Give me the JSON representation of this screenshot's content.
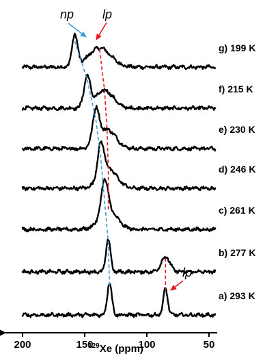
{
  "chart_data": {
    "type": "line",
    "xlabel_sup": "129",
    "xlabel_main": "Xe (ppm)",
    "xlim": [
      200,
      45
    ],
    "xticks": [
      200,
      150,
      100,
      50
    ],
    "series": [
      {
        "label": "g) 199 K",
        "np": 158,
        "lp": 138
      },
      {
        "label": "f) 215 K",
        "np": 148,
        "lp": 134
      },
      {
        "label": "e) 230 K",
        "np": 141,
        "lp": 132
      },
      {
        "label": "d) 246 K",
        "np": 137,
        "lp": 131
      },
      {
        "label": "c) 261 K",
        "np": 134,
        "lp": 131
      },
      {
        "label": "b) 277 K",
        "np": 131,
        "lp": 85
      },
      {
        "label": "a) 293 K",
        "np": 130,
        "lp": 85
      }
    ],
    "annotations": [
      {
        "text": "np",
        "color": "#3a9ad9"
      },
      {
        "text": "lp",
        "color": "#e8141e"
      },
      {
        "text": "lp",
        "color": "#e8141e"
      }
    ],
    "colors": {
      "np": "#3a9ad9",
      "lp": "#e8141e",
      "trace": "#000000"
    }
  }
}
